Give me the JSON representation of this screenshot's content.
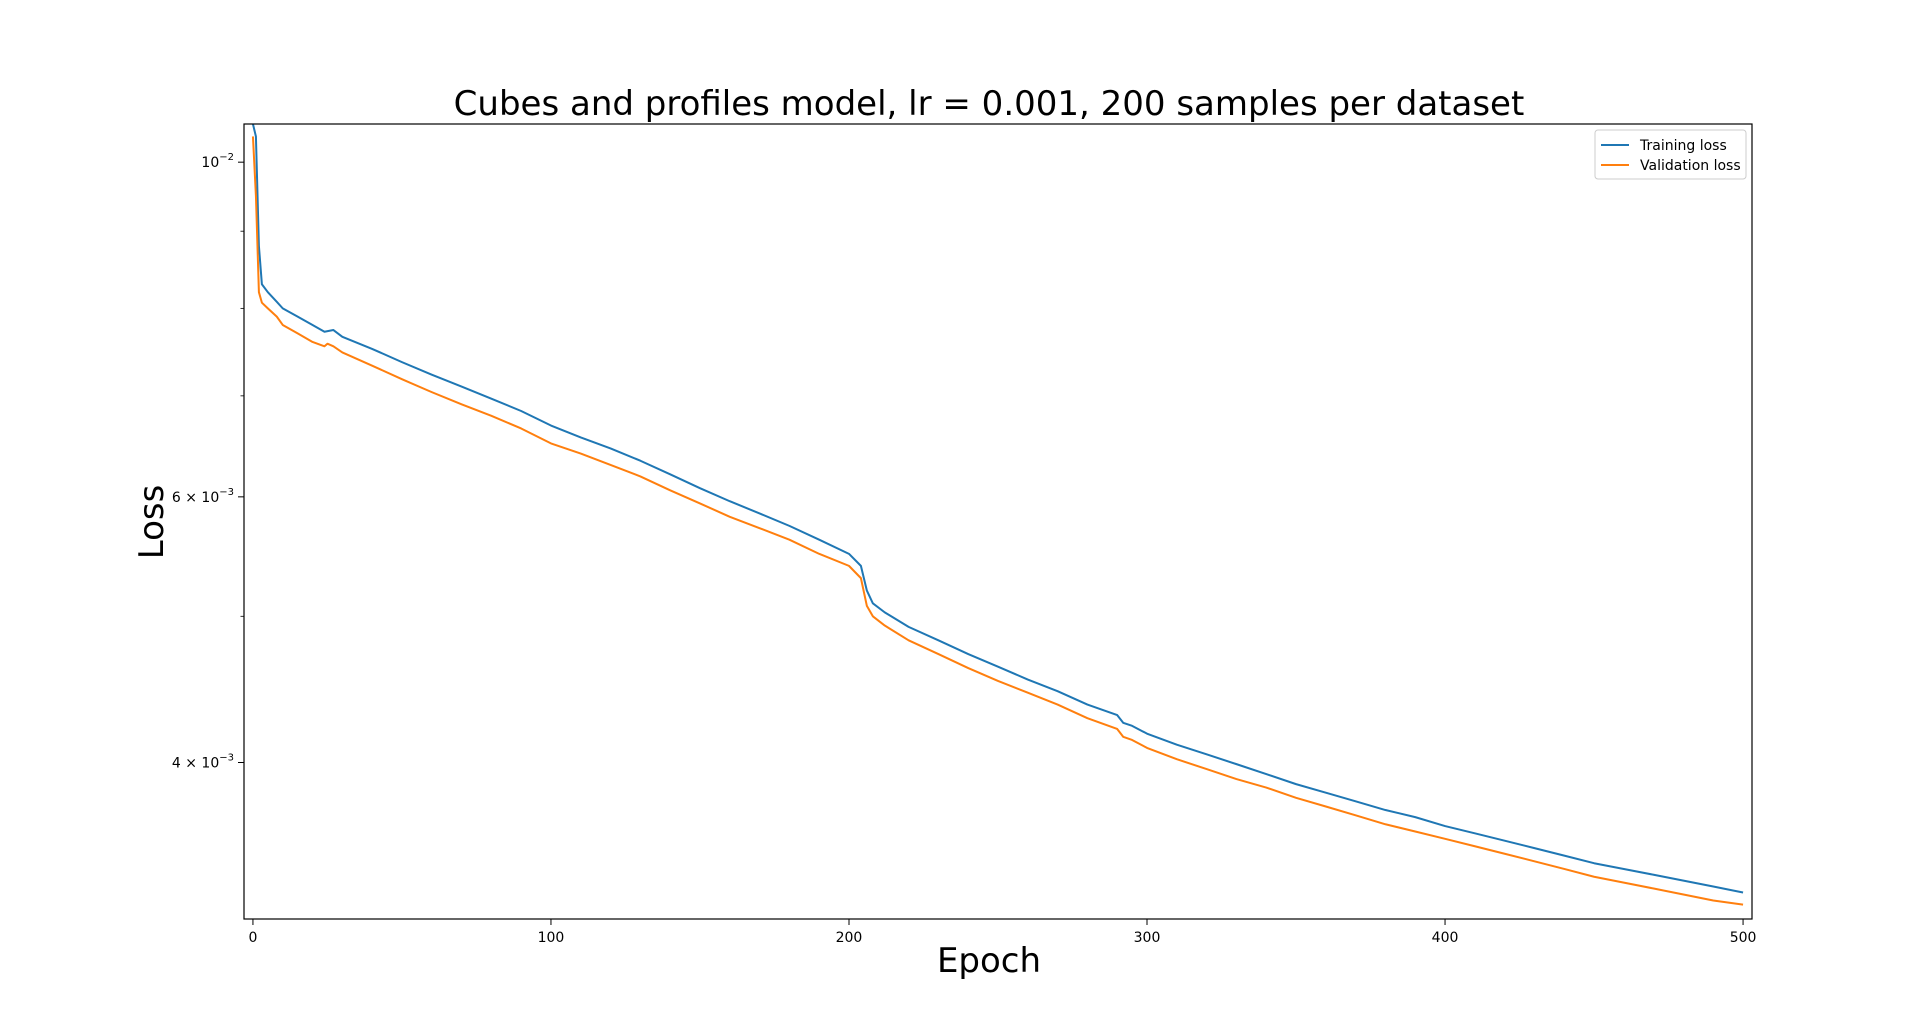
{
  "chart_data": {
    "type": "line",
    "title": "Cubes and profiles model, lr = 0.001, 200 samples per dataset",
    "xlabel": "Epoch",
    "ylabel": "Loss",
    "xlim": [
      -3,
      503
    ],
    "ylim": [
      0.00315,
      0.0106
    ],
    "yscale": "log",
    "grid": false,
    "legend_position": "top-right",
    "x_ticks": [
      {
        "value": 0,
        "label": "0"
      },
      {
        "value": 100,
        "label": "100"
      },
      {
        "value": 200,
        "label": "200"
      },
      {
        "value": 300,
        "label": "300"
      },
      {
        "value": 400,
        "label": "400"
      },
      {
        "value": 500,
        "label": "500"
      }
    ],
    "y_major_ticks": [
      {
        "value": 0.004,
        "base": "4 × 10",
        "exp": "−3"
      },
      {
        "value": 0.006,
        "base": "6 × 10",
        "exp": "−3"
      },
      {
        "value": 0.01,
        "base": "10",
        "exp": "−2"
      }
    ],
    "y_minor_ticks": [
      0.005,
      0.007,
      0.008,
      0.009
    ],
    "series": [
      {
        "name": "Training loss",
        "color": "#1f77b4",
        "points": [
          [
            0,
            0.0106
          ],
          [
            1,
            0.0104
          ],
          [
            2,
            0.0088
          ],
          [
            3,
            0.0083
          ],
          [
            5,
            0.0082
          ],
          [
            8,
            0.00808
          ],
          [
            10,
            0.008
          ],
          [
            15,
            0.0079
          ],
          [
            20,
            0.0078
          ],
          [
            24,
            0.00772
          ],
          [
            27,
            0.00774
          ],
          [
            30,
            0.00766
          ],
          [
            40,
            0.00752
          ],
          [
            50,
            0.00737
          ],
          [
            60,
            0.00723
          ],
          [
            70,
            0.0071
          ],
          [
            80,
            0.00697
          ],
          [
            90,
            0.00684
          ],
          [
            100,
            0.00669
          ],
          [
            110,
            0.00657
          ],
          [
            120,
            0.00646
          ],
          [
            130,
            0.00634
          ],
          [
            140,
            0.00621
          ],
          [
            150,
            0.00608
          ],
          [
            160,
            0.00596
          ],
          [
            170,
            0.00585
          ],
          [
            180,
            0.00574
          ],
          [
            190,
            0.00562
          ],
          [
            200,
            0.0055
          ],
          [
            204,
            0.0054
          ],
          [
            206,
            0.0052
          ],
          [
            208,
            0.0051
          ],
          [
            212,
            0.00503
          ],
          [
            220,
            0.00492
          ],
          [
            230,
            0.00482
          ],
          [
            240,
            0.00472
          ],
          [
            250,
            0.00463
          ],
          [
            260,
            0.00454
          ],
          [
            270,
            0.00446
          ],
          [
            280,
            0.00437
          ],
          [
            290,
            0.0043
          ],
          [
            292,
            0.00425
          ],
          [
            295,
            0.00423
          ],
          [
            300,
            0.00418
          ],
          [
            310,
            0.00411
          ],
          [
            320,
            0.00405
          ],
          [
            330,
            0.00399
          ],
          [
            340,
            0.00393
          ],
          [
            350,
            0.00387
          ],
          [
            360,
            0.00382
          ],
          [
            370,
            0.00377
          ],
          [
            380,
            0.00372
          ],
          [
            390,
            0.00368
          ],
          [
            400,
            0.00363
          ],
          [
            410,
            0.00359
          ],
          [
            420,
            0.00355
          ],
          [
            430,
            0.00351
          ],
          [
            440,
            0.00347
          ],
          [
            450,
            0.00343
          ],
          [
            460,
            0.0034
          ],
          [
            470,
            0.00337
          ],
          [
            480,
            0.00334
          ],
          [
            490,
            0.00331
          ],
          [
            500,
            0.00328
          ]
        ]
      },
      {
        "name": "Validation loss",
        "color": "#ff7f0e",
        "points": [
          [
            0,
            0.0104
          ],
          [
            1,
            0.0095
          ],
          [
            2,
            0.0082
          ],
          [
            3,
            0.00807
          ],
          [
            5,
            0.008
          ],
          [
            8,
            0.0079
          ],
          [
            10,
            0.0078
          ],
          [
            15,
            0.0077
          ],
          [
            20,
            0.0076
          ],
          [
            24,
            0.00755
          ],
          [
            25,
            0.00758
          ],
          [
            27,
            0.00755
          ],
          [
            30,
            0.00748
          ],
          [
            40,
            0.00733
          ],
          [
            50,
            0.00718
          ],
          [
            60,
            0.00704
          ],
          [
            70,
            0.00691
          ],
          [
            80,
            0.00679
          ],
          [
            90,
            0.00666
          ],
          [
            100,
            0.00651
          ],
          [
            110,
            0.00641
          ],
          [
            120,
            0.0063
          ],
          [
            130,
            0.00619
          ],
          [
            140,
            0.00606
          ],
          [
            150,
            0.00594
          ],
          [
            160,
            0.00582
          ],
          [
            170,
            0.00572
          ],
          [
            180,
            0.00562
          ],
          [
            190,
            0.0055
          ],
          [
            200,
            0.0054
          ],
          [
            204,
            0.0053
          ],
          [
            206,
            0.00508
          ],
          [
            208,
            0.005
          ],
          [
            212,
            0.00493
          ],
          [
            220,
            0.00482
          ],
          [
            230,
            0.00472
          ],
          [
            240,
            0.00462
          ],
          [
            250,
            0.00453
          ],
          [
            260,
            0.00445
          ],
          [
            270,
            0.00437
          ],
          [
            280,
            0.00428
          ],
          [
            290,
            0.00421
          ],
          [
            292,
            0.00416
          ],
          [
            295,
            0.00414
          ],
          [
            300,
            0.00409
          ],
          [
            310,
            0.00402
          ],
          [
            320,
            0.00396
          ],
          [
            330,
            0.0039
          ],
          [
            340,
            0.00385
          ],
          [
            350,
            0.00379
          ],
          [
            360,
            0.00374
          ],
          [
            370,
            0.00369
          ],
          [
            380,
            0.00364
          ],
          [
            390,
            0.0036
          ],
          [
            400,
            0.00356
          ],
          [
            410,
            0.00352
          ],
          [
            420,
            0.00348
          ],
          [
            430,
            0.00344
          ],
          [
            440,
            0.0034
          ],
          [
            450,
            0.00336
          ],
          [
            460,
            0.00333
          ],
          [
            470,
            0.0033
          ],
          [
            480,
            0.00327
          ],
          [
            490,
            0.00324
          ],
          [
            500,
            0.00322
          ]
        ]
      }
    ]
  }
}
